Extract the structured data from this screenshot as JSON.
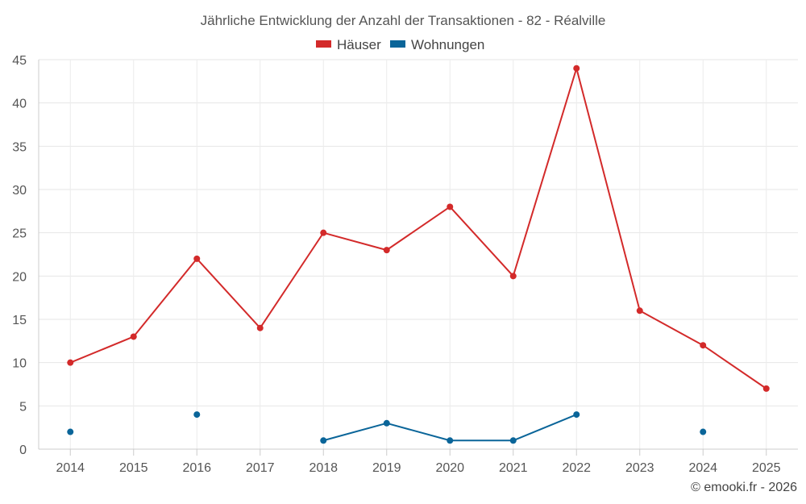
{
  "chart_data": {
    "type": "line",
    "title": "Jährliche Entwicklung der Anzahl der Transaktionen - 82 - Réalville",
    "categories": [
      "2014",
      "2015",
      "2016",
      "2017",
      "2018",
      "2019",
      "2020",
      "2021",
      "2022",
      "2023",
      "2024",
      "2025"
    ],
    "series": [
      {
        "name": "Häuser",
        "color": "#d32a2a",
        "values": [
          10,
          13,
          22,
          14,
          25,
          23,
          28,
          20,
          44,
          16,
          12,
          7
        ]
      },
      {
        "name": "Wohnungen",
        "color": "#0a6599",
        "values": [
          2,
          null,
          4,
          null,
          1,
          3,
          1,
          1,
          4,
          null,
          2,
          null
        ]
      }
    ],
    "y_ticks": [
      "0",
      "5",
      "10",
      "15",
      "20",
      "25",
      "30",
      "35",
      "40",
      "45"
    ],
    "ylim": [
      0,
      45
    ],
    "xlabel": "",
    "ylabel": "",
    "grid": true,
    "legend_position": "top-center"
  },
  "credit": "© emooki.fr - 2026"
}
